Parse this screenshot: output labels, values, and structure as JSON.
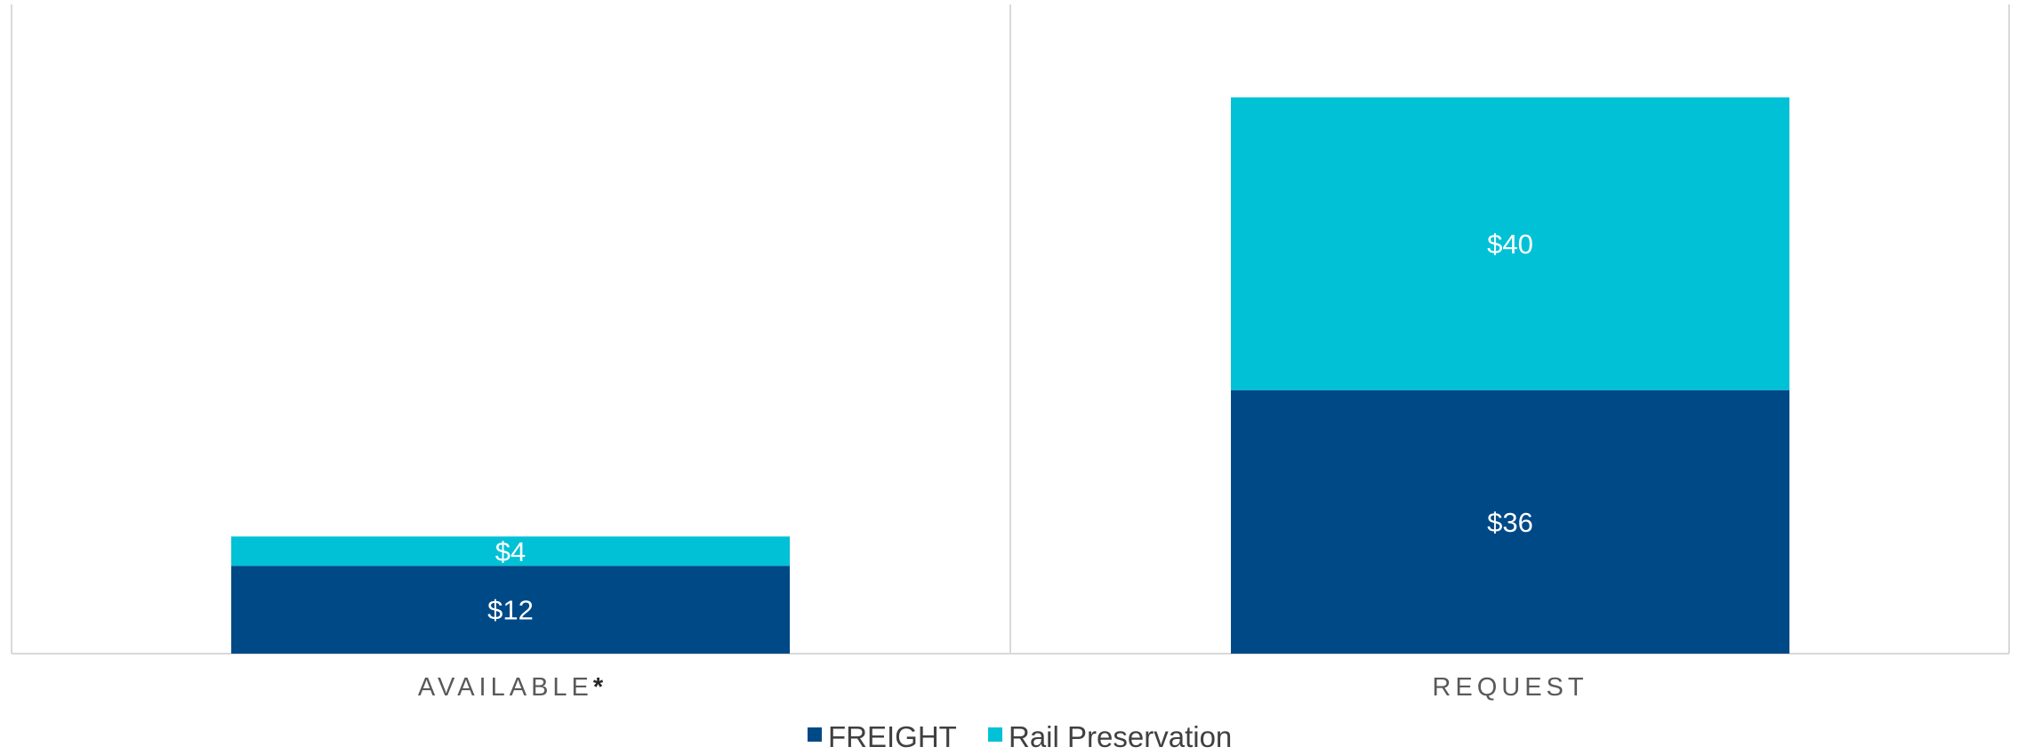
{
  "chart_data": {
    "type": "bar",
    "stacked": true,
    "categories": [
      "AVAILABLE*",
      "REQUEST"
    ],
    "category_label_parts": [
      {
        "main": "AVAILABLE",
        "mark": "*"
      },
      {
        "main": "REQUEST",
        "mark": ""
      }
    ],
    "series": [
      {
        "name": "FREIGHT",
        "color": "#004987",
        "values": [
          12,
          36
        ],
        "labels": [
          "$12",
          "$36"
        ]
      },
      {
        "name": "Rail Preservation",
        "color": "#00C1D5",
        "values": [
          4,
          40
        ],
        "labels": [
          "$4",
          "$40"
        ]
      }
    ],
    "ylim": [
      0,
      80
    ],
    "grid": false,
    "legend": "bottom",
    "axis_color": "#D9D9D9"
  }
}
